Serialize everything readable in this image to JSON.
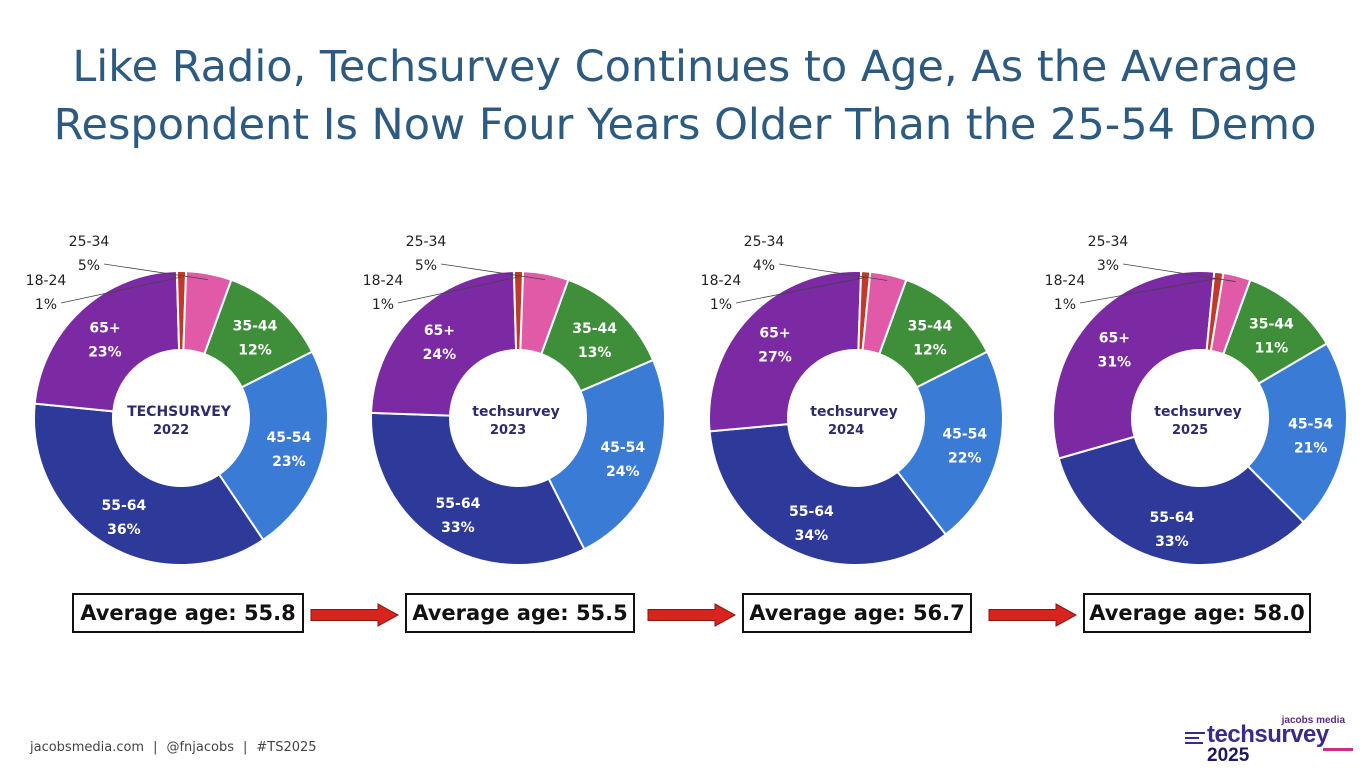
{
  "title": {
    "line1": "Like Radio, Techsurvey Continues to Age, As the Average",
    "line2": "Respondent Is Now Four Years Older Than the 25-54 Demo"
  },
  "colors": {
    "18-24": "#c0392b",
    "25-34": "#e05aa8",
    "35-44": "#3f8f3a",
    "45-54": "#3a7bd5",
    "55-64": "#2d3a9a",
    "65+": "#7b2aa3",
    "arrow": "#d9231e"
  },
  "chart_data": [
    {
      "type": "pie",
      "variant": "donut",
      "center_label": "TECHSURVEY 2022",
      "categories": [
        "35-44",
        "45-54",
        "55-64",
        "65+",
        "18-24",
        "25-34"
      ],
      "values": [
        12,
        23,
        36,
        23,
        1,
        5
      ],
      "average_label": "Average age: 55.8"
    },
    {
      "type": "pie",
      "variant": "donut",
      "center_label": "techsurvey 2023",
      "categories": [
        "35-44",
        "45-54",
        "55-64",
        "65+",
        "18-24",
        "25-34"
      ],
      "values": [
        13,
        24,
        33,
        24,
        1,
        5
      ],
      "average_label": "Average age: 55.5"
    },
    {
      "type": "pie",
      "variant": "donut",
      "center_label": "techsurvey 2024",
      "categories": [
        "35-44",
        "45-54",
        "55-64",
        "65+",
        "18-24",
        "25-34"
      ],
      "values": [
        12,
        22,
        34,
        27,
        1,
        4
      ],
      "average_label": "Average age: 56.7"
    },
    {
      "type": "pie",
      "variant": "donut",
      "center_label": "techsurvey 2025",
      "categories": [
        "35-44",
        "45-54",
        "55-64",
        "65+",
        "18-24",
        "25-34"
      ],
      "values": [
        11,
        21,
        33,
        31,
        1,
        3
      ],
      "average_label": "Average age: 58.0"
    }
  ],
  "footer": {
    "site": "jacobsmedia.com",
    "handle": "@fnjacobs",
    "hashtag": "#TS2025"
  },
  "brand": {
    "small": "jacobs media",
    "name": "techsurvey",
    "year": "2025"
  }
}
